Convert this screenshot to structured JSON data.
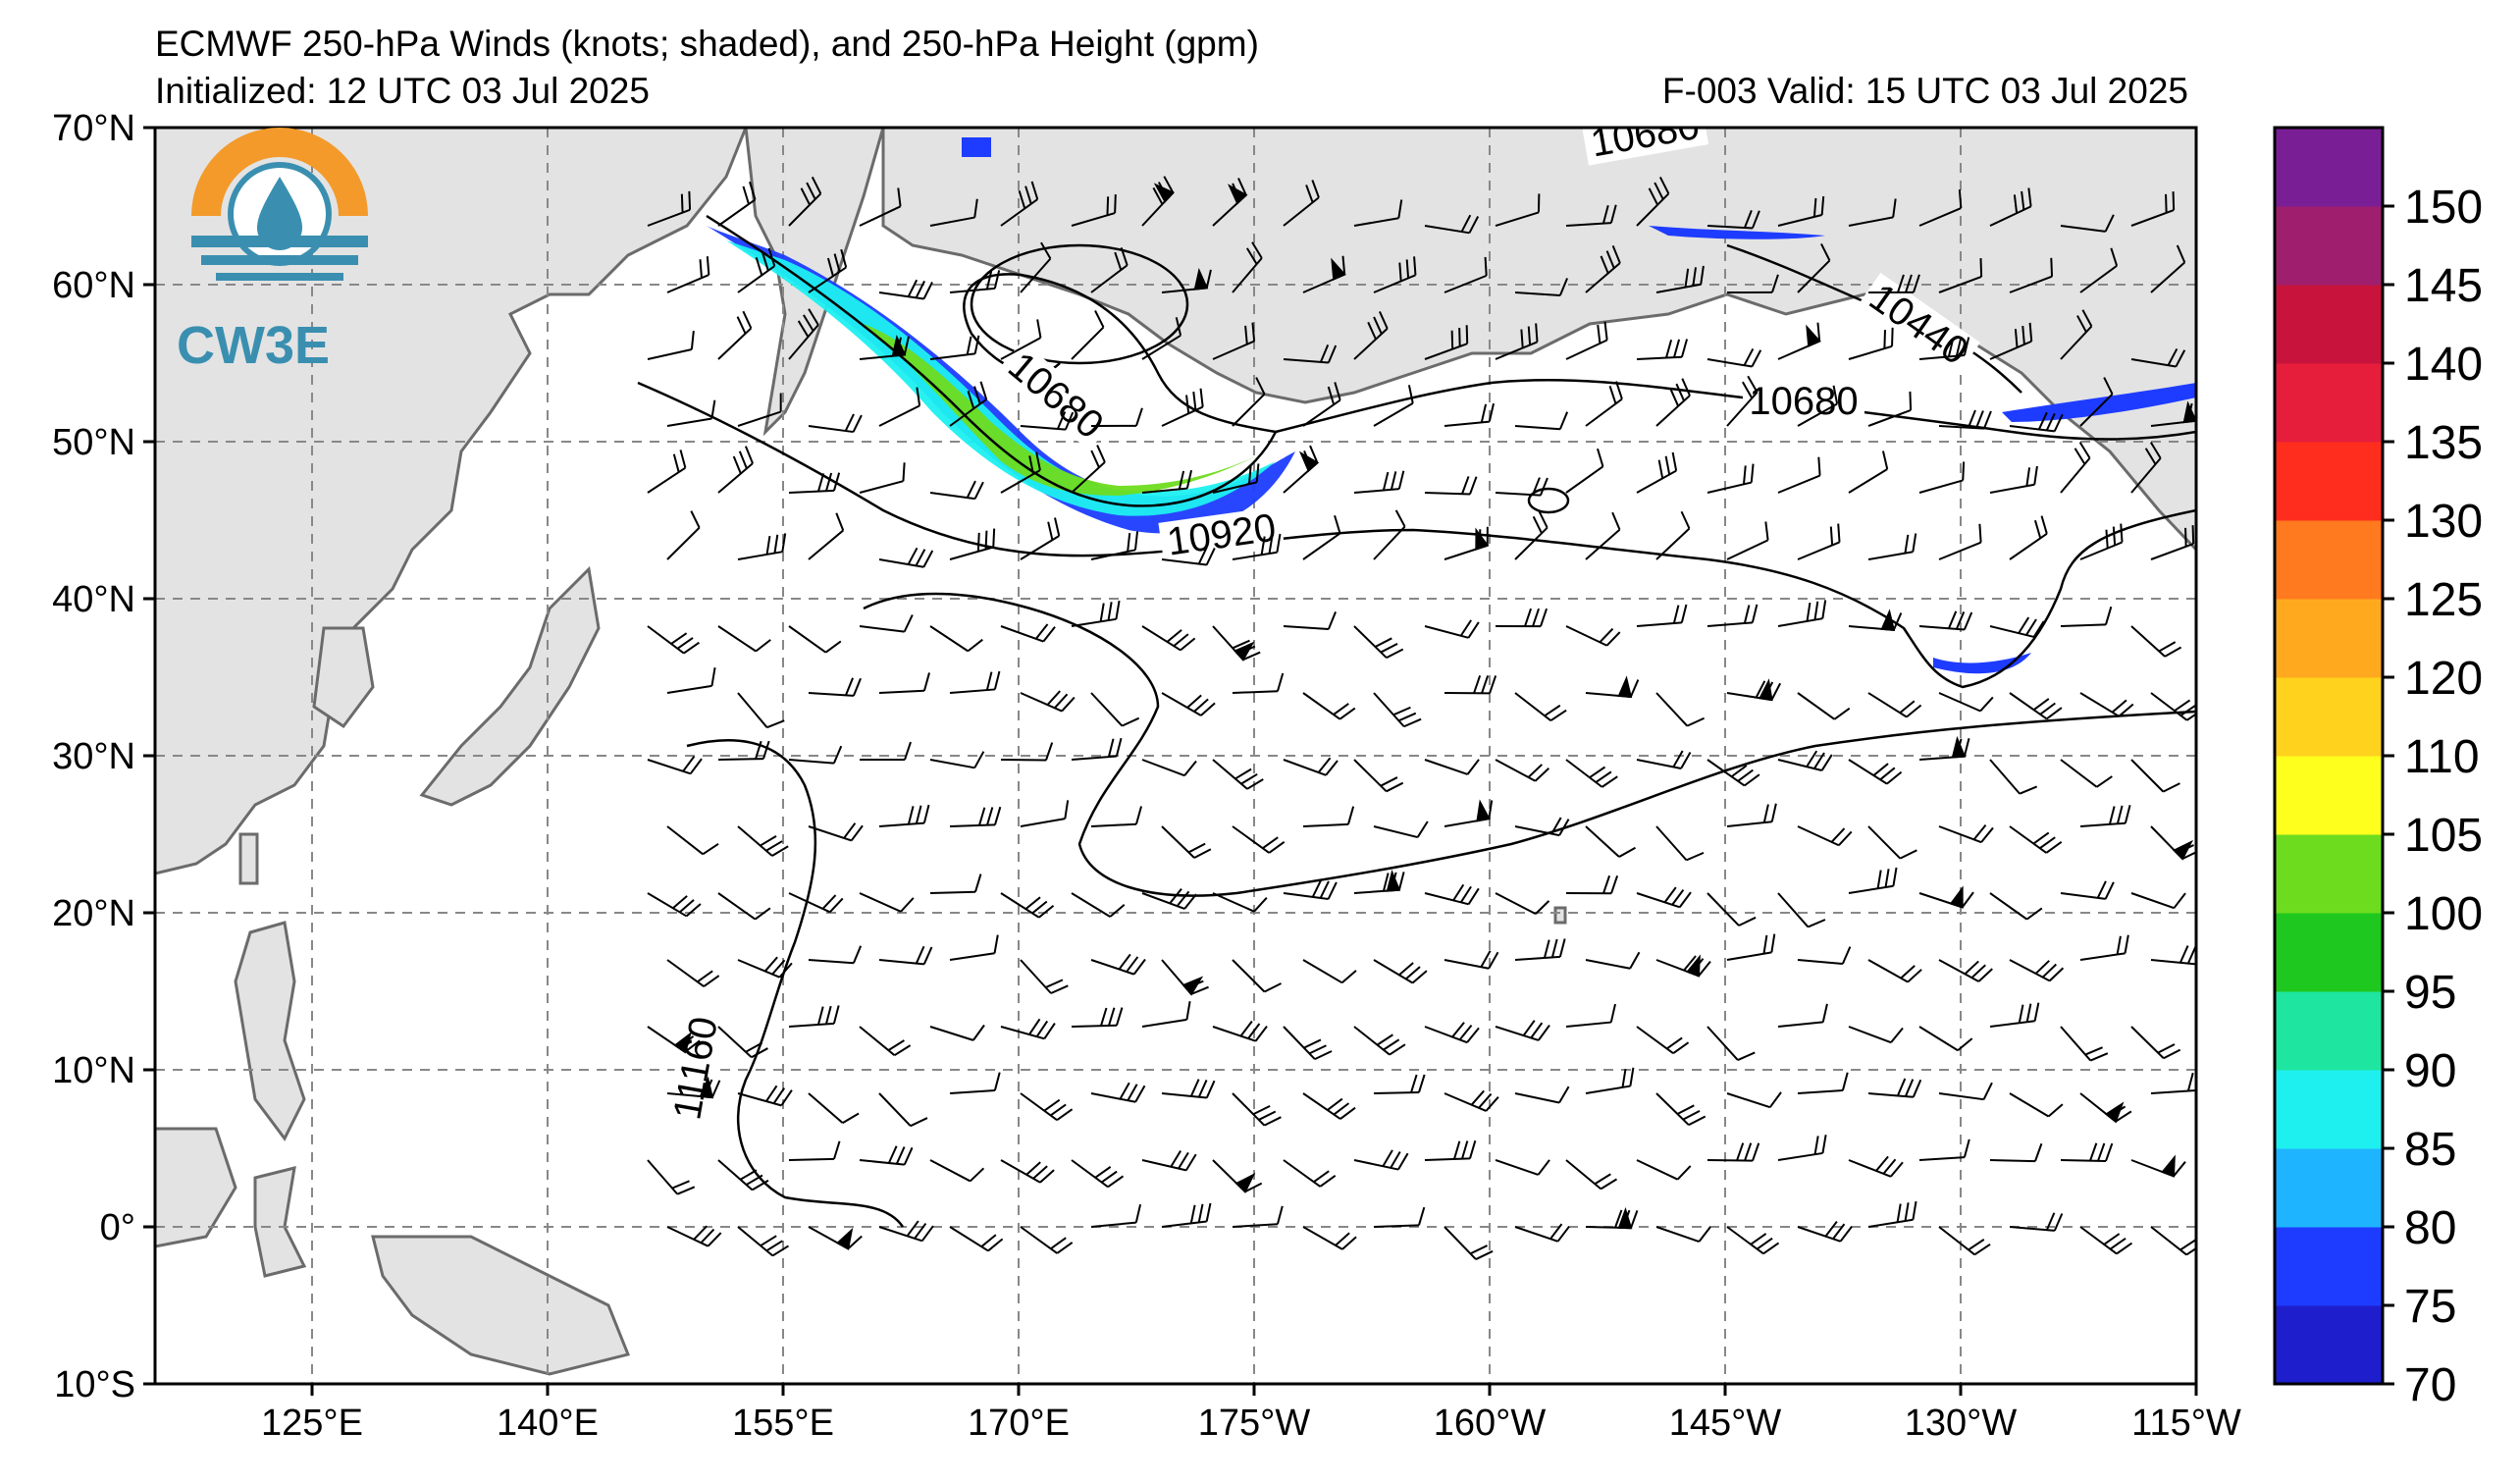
{
  "header": {
    "title": "ECMWF 250-hPa Winds (knots; shaded), and 250-hPa Height (gpm)",
    "initialized": "Initialized: 12 UTC 03 Jul 2025",
    "valid": "F-003  Valid: 15 UTC 03 Jul 2025"
  },
  "logo": {
    "text": "CW3E",
    "colors": {
      "orange": "#f39a2b",
      "blue": "#3a8fb0"
    }
  },
  "map": {
    "lat_labels": [
      "70°N",
      "60°N",
      "50°N",
      "40°N",
      "30°N",
      "20°N",
      "10°N",
      "0°",
      "10°S"
    ],
    "lon_labels": [
      "125°E",
      "140°E",
      "155°E",
      "170°E",
      "175°W",
      "160°W",
      "145°W",
      "130°W",
      "115°W"
    ],
    "land_color": "#e3e3e3",
    "coast_color": "#6b6b6b",
    "contour_labels": [
      {
        "text": "10680",
        "lon": 172,
        "lat": 52.5,
        "angle": 40
      },
      {
        "text": "10920",
        "lon": -177,
        "lat": 43.5,
        "angle": -8
      },
      {
        "text": "10680",
        "lon": -140,
        "lat": 52,
        "angle": 0
      },
      {
        "text": "10440",
        "lon": -133,
        "lat": 57,
        "angle": 35
      },
      {
        "text": "10680",
        "lon": -150,
        "lat": 69,
        "angle": -10
      },
      {
        "text": "11160",
        "lon": 150,
        "lat": 10,
        "angle": -80
      }
    ],
    "jet_contours_note": ""
  },
  "colorbar": {
    "levels": [
      70,
      75,
      80,
      85,
      90,
      95,
      100,
      105,
      110,
      120,
      125,
      130,
      135,
      140,
      145,
      150
    ],
    "labels": [
      "150",
      "145",
      "140",
      "135",
      "130",
      "125",
      "120",
      "110",
      "105",
      "100",
      "95",
      "90",
      "85",
      "80",
      "75",
      "70"
    ],
    "colors": [
      "#1e1ecc",
      "#1e3cff",
      "#1eb4ff",
      "#1ef0f0",
      "#1ee6a0",
      "#1ec81e",
      "#6edc1e",
      "#ffff1e",
      "#ffd21e",
      "#ffaa1e",
      "#ff7a1e",
      "#ff2d1e",
      "#e61e3c",
      "#c8143c",
      "#a01e6e",
      "#7a1e96"
    ]
  }
}
